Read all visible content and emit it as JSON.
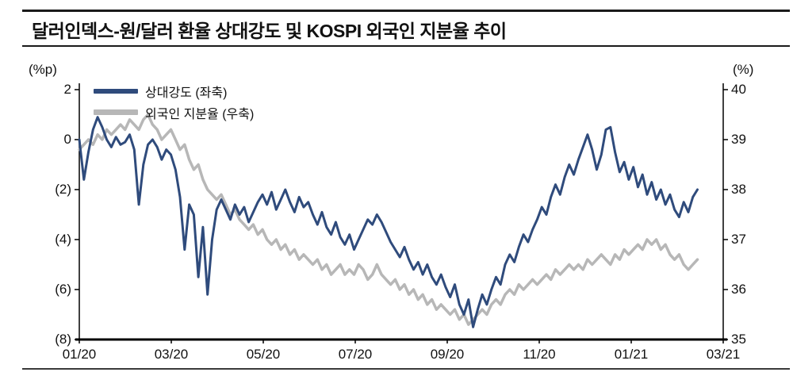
{
  "title": "달러인덱스-원/달러 환율 상대강도 및 KOSPI 외국인 지분율 추이",
  "chart_data": {
    "type": "line",
    "left_axis": {
      "label": "(%p)",
      "ticks": [
        "2",
        "0",
        "(2)",
        "(4)",
        "(6)",
        "(8)"
      ],
      "range": [
        -8,
        2
      ]
    },
    "right_axis": {
      "label": "(%)",
      "ticks": [
        "40",
        "39",
        "38",
        "37",
        "36",
        "35"
      ],
      "range": [
        35,
        40
      ]
    },
    "x_ticks": [
      "01/20",
      "03/20",
      "05/20",
      "07/20",
      "09/20",
      "11/20",
      "01/21",
      "03/21"
    ],
    "x_end_fraction": 0.96,
    "grid": false,
    "legend_position": "top-left-inside",
    "series": [
      {
        "name": "상대강도 (좌축)",
        "axis": "left",
        "color": "#2f4b7c",
        "stroke_width": 3,
        "values": [
          0.0,
          -1.6,
          -0.5,
          0.4,
          0.9,
          0.5,
          0.0,
          -0.3,
          0.1,
          -0.2,
          -0.1,
          0.2,
          -0.4,
          -2.6,
          -1.0,
          -0.2,
          0.0,
          -0.3,
          -0.8,
          -0.4,
          -0.6,
          -1.2,
          -2.3,
          -4.4,
          -2.6,
          -3.0,
          -5.5,
          -3.5,
          -6.2,
          -4.0,
          -2.8,
          -2.4,
          -2.8,
          -3.2,
          -2.6,
          -3.0,
          -2.7,
          -3.3,
          -2.9,
          -2.5,
          -2.2,
          -2.6,
          -2.1,
          -2.8,
          -2.4,
          -2.0,
          -2.5,
          -2.9,
          -2.3,
          -2.7,
          -2.5,
          -3.0,
          -3.4,
          -2.9,
          -3.5,
          -3.8,
          -3.3,
          -3.9,
          -4.2,
          -3.8,
          -4.4,
          -4.0,
          -3.6,
          -3.2,
          -3.4,
          -3.0,
          -3.3,
          -3.7,
          -4.1,
          -4.4,
          -4.7,
          -4.3,
          -4.8,
          -5.2,
          -4.9,
          -5.4,
          -5.0,
          -5.5,
          -5.8,
          -5.4,
          -5.9,
          -6.3,
          -5.8,
          -6.6,
          -7.0,
          -6.4,
          -7.5,
          -6.8,
          -6.2,
          -6.6,
          -6.0,
          -5.5,
          -5.8,
          -5.0,
          -4.6,
          -4.9,
          -4.3,
          -3.8,
          -4.1,
          -3.6,
          -3.2,
          -2.7,
          -3.0,
          -2.3,
          -1.8,
          -2.2,
          -1.5,
          -1.0,
          -1.4,
          -0.8,
          -0.3,
          0.2,
          -0.4,
          -1.2,
          -0.6,
          0.4,
          0.5,
          -0.5,
          -1.3,
          -0.9,
          -1.6,
          -1.1,
          -1.9,
          -1.4,
          -2.2,
          -1.7,
          -2.4,
          -2.0,
          -2.6,
          -2.2,
          -2.8,
          -3.1,
          -2.5,
          -2.9,
          -2.3,
          -2.0
        ]
      },
      {
        "name": "외국인 지분율 (우축)",
        "axis": "right",
        "color": "#b7b7b7",
        "stroke_width": 3.5,
        "values": [
          38.8,
          38.9,
          39.0,
          38.9,
          39.1,
          39.0,
          39.2,
          39.1,
          39.2,
          39.3,
          39.2,
          39.4,
          39.3,
          39.2,
          39.4,
          39.5,
          39.3,
          39.2,
          39.0,
          39.1,
          39.2,
          39.0,
          38.8,
          38.9,
          38.6,
          38.4,
          38.5,
          38.2,
          38.0,
          37.9,
          37.8,
          37.9,
          37.7,
          37.5,
          37.6,
          37.4,
          37.3,
          37.2,
          37.3,
          37.1,
          37.2,
          37.0,
          36.9,
          37.0,
          36.8,
          36.9,
          36.7,
          36.8,
          36.6,
          36.7,
          36.6,
          36.5,
          36.6,
          36.4,
          36.5,
          36.3,
          36.4,
          36.5,
          36.3,
          36.4,
          36.3,
          36.5,
          36.4,
          36.2,
          36.3,
          36.5,
          36.3,
          36.2,
          36.1,
          36.2,
          36.0,
          36.1,
          35.9,
          36.0,
          35.8,
          35.9,
          35.7,
          35.8,
          35.6,
          35.7,
          35.6,
          35.5,
          35.6,
          35.4,
          35.5,
          35.3,
          35.4,
          35.5,
          35.6,
          35.5,
          35.7,
          35.8,
          35.7,
          35.9,
          36.0,
          35.9,
          36.1,
          36.0,
          36.1,
          36.2,
          36.1,
          36.2,
          36.3,
          36.2,
          36.4,
          36.3,
          36.4,
          36.5,
          36.4,
          36.5,
          36.4,
          36.6,
          36.5,
          36.6,
          36.7,
          36.6,
          36.5,
          36.7,
          36.6,
          36.8,
          36.7,
          36.8,
          36.9,
          36.8,
          37.0,
          36.9,
          37.0,
          36.8,
          36.9,
          36.7,
          36.6,
          36.7,
          36.5,
          36.4,
          36.5,
          36.6
        ]
      }
    ]
  }
}
